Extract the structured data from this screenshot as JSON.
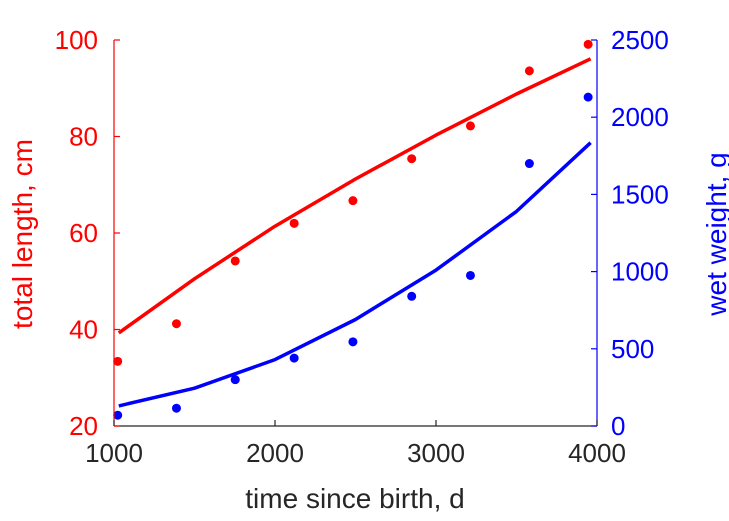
{
  "chart_data": {
    "type": "scatter",
    "xlabel": "time since birth, d",
    "ylabel_left": "total length, cm",
    "ylabel_right": "wet weight, g",
    "xlim": [
      1000,
      4000
    ],
    "ylim_left": [
      20,
      100
    ],
    "ylim_right": [
      0,
      2500
    ],
    "x_ticks": [
      "1000",
      "2000",
      "3000",
      "4000"
    ],
    "y_left_ticks": [
      "20",
      "40",
      "60",
      "80",
      "100"
    ],
    "y_right_ticks": [
      "0",
      "500",
      "1000",
      "1500",
      "2000",
      "2500"
    ],
    "grid": false,
    "colors": {
      "left": "#ff0000",
      "right": "#0000ff",
      "axis_x": "#262626"
    },
    "series": [
      {
        "axis": "left",
        "kind": "points",
        "x": [
          1023,
          1388,
          1753,
          2119,
          2484,
          2849,
          3214,
          3580,
          3945
        ],
        "y": [
          33.4,
          41.2,
          54.2,
          62.0,
          66.7,
          75.4,
          82.2,
          93.6,
          99.1
        ]
      },
      {
        "axis": "left",
        "kind": "line",
        "x": [
          1030,
          1500,
          2000,
          2500,
          3000,
          3500,
          3960
        ],
        "y": [
          39.3,
          50.5,
          61.4,
          71.2,
          80.3,
          88.8,
          96.1
        ]
      },
      {
        "axis": "right",
        "kind": "points",
        "x": [
          1023,
          1388,
          1753,
          2119,
          2484,
          2849,
          3214,
          3580,
          3945
        ],
        "y": [
          70,
          115,
          300,
          440,
          545,
          840,
          975,
          1700,
          2130
        ]
      },
      {
        "axis": "right",
        "kind": "line",
        "x": [
          1030,
          1500,
          2000,
          2500,
          3000,
          3500,
          3960
        ],
        "y": [
          130,
          245,
          430,
          690,
          1010,
          1390,
          1835
        ]
      }
    ]
  }
}
